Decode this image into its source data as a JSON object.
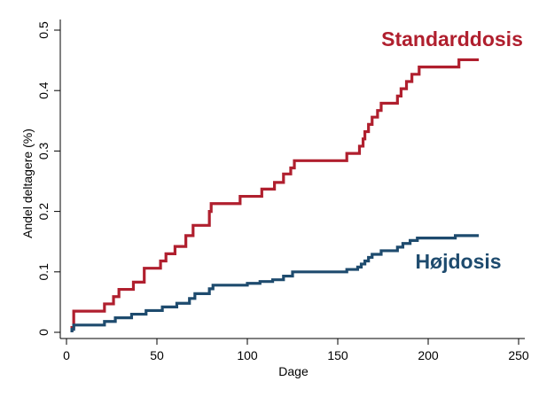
{
  "chart_data": {
    "type": "line",
    "step": true,
    "xlabel": "Dage",
    "ylabel": "Andel deltagere (%)",
    "xlim": [
      0,
      250
    ],
    "ylim": [
      0,
      0.5
    ],
    "x_ticks": [
      0,
      50,
      100,
      150,
      200,
      250
    ],
    "x_tick_labels": [
      "0",
      "50",
      "100",
      "150",
      "200",
      "250"
    ],
    "y_ticks": [
      0,
      0.1,
      0.2,
      0.3,
      0.4,
      0.5
    ],
    "y_tick_labels": [
      "0",
      "0.1",
      "0.2",
      "0.3",
      "0.4",
      "0.5"
    ],
    "grid": false,
    "legend": "none",
    "series": [
      {
        "name": "Standarddosis",
        "color": "#b01f2e",
        "points": [
          [
            3,
            0.0
          ],
          [
            3,
            0.008
          ],
          [
            4,
            0.008
          ],
          [
            4,
            0.035
          ],
          [
            21,
            0.035
          ],
          [
            21,
            0.047
          ],
          [
            26,
            0.047
          ],
          [
            26,
            0.059
          ],
          [
            29,
            0.059
          ],
          [
            29,
            0.071
          ],
          [
            37,
            0.071
          ],
          [
            37,
            0.083
          ],
          [
            43,
            0.083
          ],
          [
            43,
            0.106
          ],
          [
            52,
            0.106
          ],
          [
            52,
            0.118
          ],
          [
            55,
            0.118
          ],
          [
            55,
            0.13
          ],
          [
            60,
            0.13
          ],
          [
            60,
            0.142
          ],
          [
            66,
            0.142
          ],
          [
            66,
            0.16
          ],
          [
            70,
            0.16
          ],
          [
            70,
            0.177
          ],
          [
            79,
            0.177
          ],
          [
            79,
            0.2
          ],
          [
            80,
            0.2
          ],
          [
            80,
            0.213
          ],
          [
            96,
            0.213
          ],
          [
            96,
            0.225
          ],
          [
            108,
            0.225
          ],
          [
            108,
            0.237
          ],
          [
            115,
            0.237
          ],
          [
            115,
            0.248
          ],
          [
            120,
            0.248
          ],
          [
            120,
            0.262
          ],
          [
            124,
            0.262
          ],
          [
            124,
            0.272
          ],
          [
            126,
            0.272
          ],
          [
            126,
            0.284
          ],
          [
            155,
            0.284
          ],
          [
            155,
            0.296
          ],
          [
            162,
            0.296
          ],
          [
            162,
            0.308
          ],
          [
            164,
            0.308
          ],
          [
            164,
            0.32
          ],
          [
            165,
            0.32
          ],
          [
            165,
            0.332
          ],
          [
            167,
            0.332
          ],
          [
            167,
            0.344
          ],
          [
            169,
            0.344
          ],
          [
            169,
            0.356
          ],
          [
            172,
            0.356
          ],
          [
            172,
            0.367
          ],
          [
            174,
            0.367
          ],
          [
            174,
            0.379
          ],
          [
            183,
            0.379
          ],
          [
            183,
            0.391
          ],
          [
            185,
            0.391
          ],
          [
            185,
            0.403
          ],
          [
            188,
            0.403
          ],
          [
            188,
            0.415
          ],
          [
            191,
            0.415
          ],
          [
            191,
            0.427
          ],
          [
            195,
            0.427
          ],
          [
            195,
            0.439
          ],
          [
            217,
            0.439
          ],
          [
            217,
            0.451
          ],
          [
            228,
            0.451
          ]
        ],
        "label": "Standarddosis"
      },
      {
        "name": "Højdosis",
        "color": "#1e4b6e",
        "points": [
          [
            3,
            0.0
          ],
          [
            3,
            0.005
          ],
          [
            4,
            0.005
          ],
          [
            4,
            0.012
          ],
          [
            21,
            0.012
          ],
          [
            21,
            0.018
          ],
          [
            27,
            0.018
          ],
          [
            27,
            0.024
          ],
          [
            36,
            0.024
          ],
          [
            36,
            0.03
          ],
          [
            44,
            0.03
          ],
          [
            44,
            0.036
          ],
          [
            53,
            0.036
          ],
          [
            53,
            0.042
          ],
          [
            61,
            0.042
          ],
          [
            61,
            0.048
          ],
          [
            68,
            0.048
          ],
          [
            68,
            0.056
          ],
          [
            71,
            0.056
          ],
          [
            71,
            0.064
          ],
          [
            79,
            0.064
          ],
          [
            79,
            0.072
          ],
          [
            81,
            0.072
          ],
          [
            81,
            0.078
          ],
          [
            100,
            0.078
          ],
          [
            100,
            0.081
          ],
          [
            107,
            0.081
          ],
          [
            107,
            0.084
          ],
          [
            114,
            0.084
          ],
          [
            114,
            0.087
          ],
          [
            120,
            0.087
          ],
          [
            120,
            0.093
          ],
          [
            125,
            0.093
          ],
          [
            125,
            0.1
          ],
          [
            155,
            0.1
          ],
          [
            155,
            0.104
          ],
          [
            161,
            0.104
          ],
          [
            161,
            0.108
          ],
          [
            163,
            0.108
          ],
          [
            163,
            0.113
          ],
          [
            165,
            0.113
          ],
          [
            165,
            0.118
          ],
          [
            167,
            0.118
          ],
          [
            167,
            0.124
          ],
          [
            169,
            0.124
          ],
          [
            169,
            0.129
          ],
          [
            174,
            0.129
          ],
          [
            174,
            0.135
          ],
          [
            183,
            0.135
          ],
          [
            183,
            0.141
          ],
          [
            186,
            0.141
          ],
          [
            186,
            0.147
          ],
          [
            190,
            0.147
          ],
          [
            190,
            0.152
          ],
          [
            194,
            0.152
          ],
          [
            194,
            0.156
          ],
          [
            215,
            0.156
          ],
          [
            215,
            0.16
          ],
          [
            228,
            0.16
          ]
        ],
        "label": "Højdosis"
      }
    ]
  }
}
